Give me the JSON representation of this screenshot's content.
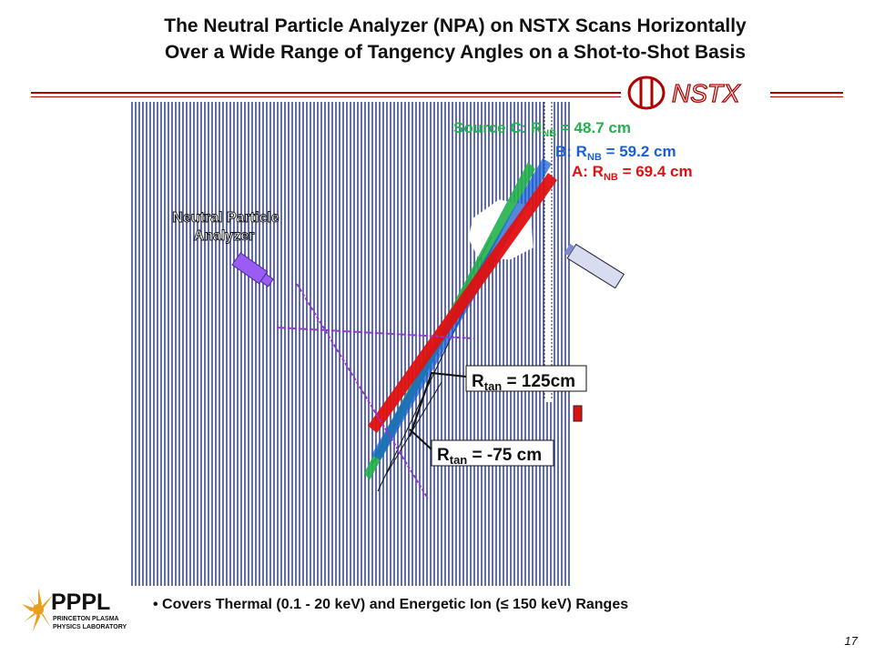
{
  "title": {
    "line1": "The Neutral Particle Analyzer (NPA) on NSTX Scans Horizontally",
    "line2": "Over a Wide Range of Tangency Angles on a Shot-to-Shot Basis"
  },
  "logo_nstx": {
    "text": "NSTX"
  },
  "logo_pppl": {
    "text": "PPPL",
    "subtext_1": "PRINCETON PLASMA",
    "subtext_2": "PHYSICS LABORATORY"
  },
  "diagram": {
    "npa_label_1": "Neutral Particle",
    "npa_label_2": "Analyzer",
    "source_c": {
      "prefix": "Source C: R",
      "sub": "NB",
      "value": " = 48.7 cm"
    },
    "source_b": {
      "prefix": "B: R",
      "sub": "NB",
      "value": " = 59.2 cm"
    },
    "source_a": {
      "prefix": "A: R",
      "sub": "NB",
      "value": " = 69.4 cm"
    },
    "rtan_1": {
      "prefix": "R",
      "sub": "tan",
      "value": " = 125cm"
    },
    "rtan_2": {
      "prefix": "R",
      "sub": "tan",
      "value": " = -75 cm"
    },
    "colors": {
      "source_c": "#22b14c",
      "source_b": "#1a5fd6",
      "source_a": "#e01010",
      "npa": "#9b5cf6",
      "sightline": "#9b30d6"
    }
  },
  "bullet": "Covers Thermal (0.1 - 20 keV) and Energetic Ion (≤ 150 keV) Ranges",
  "page_number": "17"
}
